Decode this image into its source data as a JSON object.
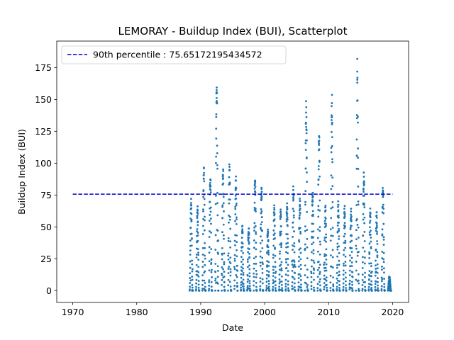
{
  "chart_data": {
    "type": "scatter",
    "title": "LEMORAY - Buildup Index (BUI), Scatterplot",
    "xlabel": "Date",
    "ylabel": "Buildup Index (BUI)",
    "xlim": [
      1967.5,
      2022.5
    ],
    "ylim": [
      -9.3,
      195.8
    ],
    "x_ticks": [
      1970,
      1980,
      1990,
      2000,
      2010,
      2020
    ],
    "y_ticks": [
      0,
      25,
      50,
      75,
      100,
      125,
      150,
      175
    ],
    "grid": false,
    "legend_position": "top-left",
    "point_color": "#1f77b4",
    "reference_line": {
      "label": "90th percentile : 75.65172195434572",
      "y": 75.65172195434572,
      "x_range": [
        1970,
        2020
      ],
      "color": "#0000cc",
      "style": "dashed"
    },
    "season_peaks": [
      {
        "year": 1988,
        "peak": 73
      },
      {
        "year": 1989,
        "peak": 67
      },
      {
        "year": 1990,
        "peak": 100
      },
      {
        "year": 1991,
        "peak": 95
      },
      {
        "year": 1992,
        "peak": 174
      },
      {
        "year": 1993,
        "peak": 100
      },
      {
        "year": 1994,
        "peak": 102
      },
      {
        "year": 1995,
        "peak": 93
      },
      {
        "year": 1996,
        "peak": 53
      },
      {
        "year": 1997,
        "peak": 52
      },
      {
        "year": 1998,
        "peak": 91
      },
      {
        "year": 1999,
        "peak": 83
      },
      {
        "year": 2000,
        "peak": 50
      },
      {
        "year": 2001,
        "peak": 68
      },
      {
        "year": 2002,
        "peak": 68
      },
      {
        "year": 2003,
        "peak": 70
      },
      {
        "year": 2004,
        "peak": 85
      },
      {
        "year": 2005,
        "peak": 75
      },
      {
        "year": 2006,
        "peak": 150
      },
      {
        "year": 2007,
        "peak": 82
      },
      {
        "year": 2008,
        "peak": 130
      },
      {
        "year": 2009,
        "peak": 70
      },
      {
        "year": 2010,
        "peak": 154
      },
      {
        "year": 2011,
        "peak": 72
      },
      {
        "year": 2012,
        "peak": 68
      },
      {
        "year": 2013,
        "peak": 65
      },
      {
        "year": 2014,
        "peak": 187
      },
      {
        "year": 2015,
        "peak": 95
      },
      {
        "year": 2016,
        "peak": 66
      },
      {
        "year": 2017,
        "peak": 62
      },
      {
        "year": 2018,
        "peak": 85
      },
      {
        "year": 2019,
        "peak": 12
      }
    ]
  }
}
